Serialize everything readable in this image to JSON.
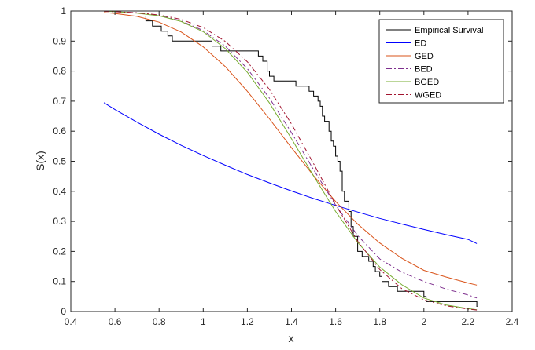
{
  "chart_data": {
    "type": "line",
    "xlabel": "x",
    "ylabel": "S(x)",
    "xlim": [
      0.4,
      2.4
    ],
    "ylim": [
      0,
      1
    ],
    "xticks": [
      "0.4",
      "0.6",
      "0.8",
      "1",
      "1.2",
      "1.4",
      "1.6",
      "1.8",
      "2",
      "2.2",
      "2.4"
    ],
    "yticks": [
      "0",
      "0.1",
      "0.2",
      "0.3",
      "0.4",
      "0.5",
      "0.6",
      "0.7",
      "0.8",
      "0.9",
      "1"
    ],
    "grid": false,
    "legend_position": "top-right",
    "series": [
      {
        "name": "Empirical Survival",
        "color": "#000000",
        "dash": "solid",
        "step": true,
        "x": [
          0.55,
          0.74,
          0.77,
          0.81,
          0.84,
          0.86,
          0.88,
          0.93,
          1.04,
          1.08,
          1.25,
          1.27,
          1.29,
          1.3,
          1.32,
          1.34,
          1.36,
          1.39,
          1.42,
          1.48,
          1.5,
          1.52,
          1.53,
          1.54,
          1.55,
          1.57,
          1.58,
          1.59,
          1.6,
          1.61,
          1.62,
          1.63,
          1.64,
          1.66,
          1.67,
          1.68,
          1.7,
          1.72,
          1.75,
          1.77,
          1.78,
          1.8,
          1.81,
          1.84,
          1.88,
          2.0,
          2.01,
          2.24
        ],
        "y": [
          0.983,
          0.967,
          0.95,
          0.933,
          0.917,
          0.9,
          0.9,
          0.9,
          0.883,
          0.867,
          0.85,
          0.833,
          0.8,
          0.783,
          0.767,
          0.767,
          0.767,
          0.767,
          0.75,
          0.733,
          0.717,
          0.7,
          0.683,
          0.65,
          0.633,
          0.6,
          0.567,
          0.55,
          0.517,
          0.5,
          0.467,
          0.4,
          0.367,
          0.333,
          0.283,
          0.25,
          0.2,
          0.183,
          0.167,
          0.15,
          0.133,
          0.117,
          0.1,
          0.083,
          0.067,
          0.05,
          0.033,
          0.017
        ]
      },
      {
        "name": "ED",
        "color": "#0000ff",
        "dash": "solid",
        "x": [
          0.55,
          0.6,
          0.7,
          0.8,
          0.9,
          1.0,
          1.1,
          1.2,
          1.3,
          1.4,
          1.5,
          1.6,
          1.7,
          1.8,
          1.9,
          2.0,
          2.1,
          2.2,
          2.24
        ],
        "y": [
          0.695,
          0.672,
          0.63,
          0.59,
          0.553,
          0.519,
          0.487,
          0.456,
          0.428,
          0.401,
          0.376,
          0.353,
          0.331,
          0.31,
          0.291,
          0.273,
          0.256,
          0.24,
          0.226
        ]
      },
      {
        "name": "GED",
        "color": "#d95319",
        "dash": "solid",
        "x": [
          0.55,
          0.6,
          0.7,
          0.8,
          0.9,
          1.0,
          1.1,
          1.2,
          1.3,
          1.4,
          1.5,
          1.6,
          1.7,
          1.8,
          1.9,
          2.0,
          2.1,
          2.2,
          2.24
        ],
        "y": [
          0.995,
          0.992,
          0.982,
          0.963,
          0.93,
          0.881,
          0.815,
          0.733,
          0.641,
          0.545,
          0.452,
          0.366,
          0.291,
          0.228,
          0.177,
          0.137,
          0.115,
          0.095,
          0.088
        ]
      },
      {
        "name": "BED",
        "color": "#7e2f8e",
        "dash": "dashdot",
        "x": [
          0.55,
          0.6,
          0.7,
          0.8,
          0.9,
          1.0,
          1.1,
          1.2,
          1.3,
          1.4,
          1.5,
          1.6,
          1.7,
          1.8,
          1.9,
          2.0,
          2.1,
          2.2,
          2.24
        ],
        "y": [
          0.999,
          0.998,
          0.994,
          0.985,
          0.967,
          0.935,
          0.883,
          0.808,
          0.71,
          0.595,
          0.472,
          0.354,
          0.253,
          0.175,
          0.131,
          0.1,
          0.075,
          0.055,
          0.045
        ]
      },
      {
        "name": "BGED",
        "color": "#77ac30",
        "dash": "solid",
        "x": [
          0.55,
          0.6,
          0.7,
          0.8,
          0.9,
          1.0,
          1.1,
          1.2,
          1.3,
          1.4,
          1.5,
          1.6,
          1.7,
          1.8,
          1.9,
          2.0,
          2.1,
          2.2,
          2.24
        ],
        "y": [
          0.999,
          0.998,
          0.993,
          0.984,
          0.965,
          0.931,
          0.875,
          0.796,
          0.694,
          0.575,
          0.451,
          0.333,
          0.23,
          0.148,
          0.089,
          0.045,
          0.022,
          0.01,
          0.006
        ]
      },
      {
        "name": "WGED",
        "color": "#a2142f",
        "dash": "dashdot",
        "x": [
          0.55,
          0.6,
          0.7,
          0.8,
          0.9,
          1.0,
          1.1,
          1.2,
          1.3,
          1.4,
          1.5,
          1.6,
          1.7,
          1.8,
          1.9,
          2.0,
          2.1,
          2.2,
          2.24
        ],
        "y": [
          0.999,
          0.998,
          0.994,
          0.987,
          0.972,
          0.945,
          0.899,
          0.831,
          0.739,
          0.624,
          0.492,
          0.356,
          0.234,
          0.14,
          0.076,
          0.039,
          0.019,
          0.008,
          0.005
        ]
      }
    ]
  }
}
